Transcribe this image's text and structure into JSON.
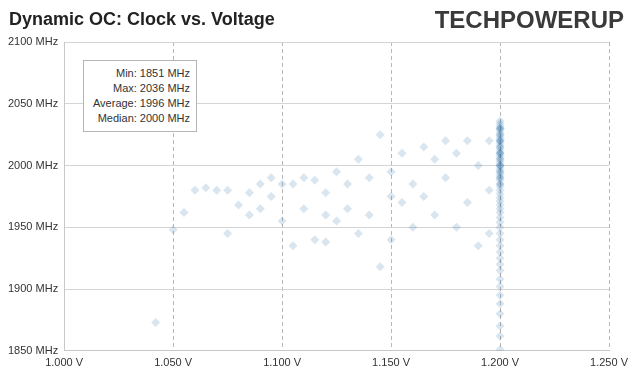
{
  "chart_data": {
    "type": "scatter",
    "title": "Dynamic OC: Clock vs. Voltage",
    "logo": "TECHPOWERUP",
    "annotations": [
      "Min: 1851 MHz",
      "Max: 2036 MHz",
      "Average: 1996 MHz",
      "Median: 2000 MHz"
    ],
    "color": "#2e6da4",
    "marker": "diamond",
    "grid": true,
    "x": [
      1.042,
      1.05,
      1.055,
      1.06,
      1.065,
      1.07,
      1.075,
      1.075,
      1.08,
      1.085,
      1.085,
      1.09,
      1.09,
      1.095,
      1.095,
      1.1,
      1.1,
      1.105,
      1.105,
      1.11,
      1.11,
      1.115,
      1.115,
      1.12,
      1.12,
      1.12,
      1.125,
      1.125,
      1.13,
      1.13,
      1.135,
      1.135,
      1.14,
      1.14,
      1.145,
      1.145,
      1.15,
      1.15,
      1.15,
      1.155,
      1.155,
      1.16,
      1.16,
      1.165,
      1.165,
      1.17,
      1.17,
      1.175,
      1.175,
      1.18,
      1.18,
      1.185,
      1.185,
      1.19,
      1.19,
      1.195,
      1.195,
      1.195,
      1.2,
      1.2,
      1.2,
      1.2,
      1.2,
      1.2,
      1.2,
      1.2,
      1.2,
      1.2,
      1.2,
      1.2,
      1.2,
      1.2,
      1.2,
      1.2,
      1.2,
      1.2,
      1.2,
      1.2,
      1.2,
      1.2,
      1.2,
      1.2,
      1.2,
      1.2,
      1.2,
      1.2,
      1.2,
      1.2,
      1.2,
      1.2,
      1.2,
      1.2,
      1.2,
      1.2,
      1.2,
      1.2,
      1.2,
      1.2,
      1.2,
      1.2,
      1.2,
      1.2,
      1.2,
      1.2,
      1.2,
      1.2,
      1.2,
      1.2,
      1.2,
      1.2,
      1.2,
      1.2,
      1.2,
      1.2,
      1.2,
      1.2,
      1.2,
      1.2,
      1.2,
      1.2,
      1.2,
      1.2,
      1.2,
      1.2
    ],
    "values": [
      1873,
      1948,
      1962,
      1980,
      1982,
      1980,
      1980,
      1945,
      1968,
      1978,
      1960,
      1985,
      1965,
      1990,
      1975,
      1955,
      1985,
      1985,
      1935,
      1990,
      1965,
      1988,
      1940,
      1978,
      1960,
      1938,
      1995,
      1955,
      1985,
      1965,
      2005,
      1945,
      1990,
      1960,
      1918,
      2025,
      1995,
      1975,
      1940,
      2010,
      1970,
      1985,
      1950,
      2015,
      1975,
      2005,
      1960,
      2020,
      1990,
      2010,
      1950,
      2020,
      1970,
      2000,
      1935,
      2020,
      1980,
      1945,
      1851,
      1862,
      1870,
      1880,
      1888,
      1895,
      1902,
      1908,
      1915,
      1920,
      1925,
      1930,
      1935,
      1940,
      1945,
      1950,
      1954,
      1958,
      1962,
      1965,
      1968,
      1971,
      1974,
      1977,
      1980,
      1983,
      1985,
      1988,
      1990,
      1992,
      1994,
      1996,
      1998,
      2000,
      2002,
      2004,
      2006,
      2008,
      2010,
      2012,
      2014,
      2016,
      2018,
      2020,
      2022,
      2024,
      2026,
      2028,
      2030,
      2032,
      2034,
      2036,
      2000,
      2005,
      2010,
      2015,
      2020,
      2025,
      2030,
      1990,
      1995,
      1985,
      2000,
      2010,
      2020,
      2030
    ],
    "xlim": [
      1.0,
      1.25
    ],
    "xticks": [
      {
        "value": 1.0,
        "label": "1.000 V"
      },
      {
        "value": 1.05,
        "label": "1.050 V"
      },
      {
        "value": 1.1,
        "label": "1.100 V"
      },
      {
        "value": 1.15,
        "label": "1.150 V"
      },
      {
        "value": 1.2,
        "label": "1.200 V"
      },
      {
        "value": 1.25,
        "label": "1.250 V"
      }
    ],
    "ylim": [
      1850,
      2100
    ],
    "yticks": [
      {
        "value": 1850,
        "label": "1850 MHz"
      },
      {
        "value": 1900,
        "label": "1900 MHz"
      },
      {
        "value": 1950,
        "label": "1950 MHz"
      },
      {
        "value": 2000,
        "label": "2000 MHz"
      },
      {
        "value": 2050,
        "label": "2050 MHz"
      },
      {
        "value": 2100,
        "label": "2100 MHz"
      }
    ]
  }
}
